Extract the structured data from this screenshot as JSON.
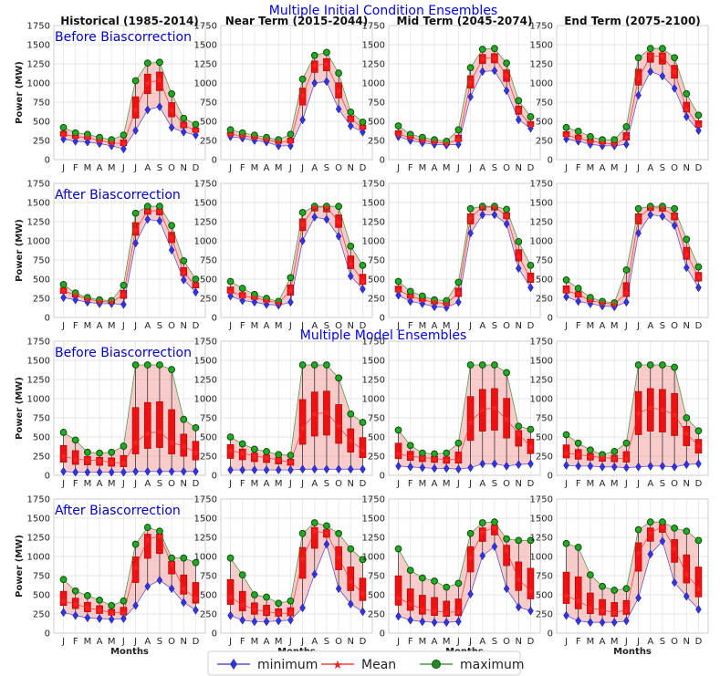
{
  "chart_data": {
    "type": "box-band",
    "suptitles": [
      "Multiple Initial Condition Ensembles",
      "Multiple Model Ensembles"
    ],
    "columns": [
      "Historical (1985-2014)",
      "Near Term (2015-2044)",
      "Mid Term (2045-2074)",
      "End Term (2075-2100)"
    ],
    "row_labels": [
      "Before Biascorrection",
      "After Biascorrection",
      "Before Biascorrection",
      "After Biascorrection"
    ],
    "categories": [
      "J",
      "F",
      "M",
      "A",
      "M",
      "J",
      "J",
      "A",
      "S",
      "O",
      "N",
      "D"
    ],
    "xlabel": "Months",
    "ylabel": "Power (MW)",
    "ylim": [
      0,
      1750
    ],
    "yticks": [
      0,
      250,
      500,
      750,
      1000,
      1250,
      1500,
      1750
    ],
    "legend": [
      {
        "name": "minimum",
        "color": "#3333cc",
        "marker": "diamond"
      },
      {
        "name": "Mean",
        "color": "#ee2222",
        "marker": "star"
      },
      {
        "name": "maximum",
        "color": "#228b22",
        "marker": "circle"
      }
    ],
    "panels": [
      [
        {
          "min": [
            270,
            240,
            230,
            210,
            180,
            140,
            380,
            650,
            690,
            420,
            360,
            320
          ],
          "mean": [
            330,
            300,
            290,
            250,
            220,
            210,
            650,
            1000,
            1040,
            650,
            450,
            380
          ],
          "max": [
            420,
            350,
            330,
            290,
            260,
            320,
            1030,
            1260,
            1270,
            860,
            540,
            460
          ]
        },
        {
          "min": [
            300,
            280,
            250,
            230,
            180,
            180,
            520,
            1000,
            1020,
            660,
            440,
            360
          ],
          "mean": [
            330,
            310,
            290,
            260,
            230,
            240,
            840,
            1230,
            1250,
            900,
            530,
            420
          ],
          "max": [
            390,
            350,
            320,
            290,
            260,
            330,
            1050,
            1360,
            1400,
            1130,
            620,
            490
          ]
        },
        {
          "min": [
            300,
            250,
            220,
            200,
            190,
            200,
            820,
            1150,
            1160,
            900,
            520,
            410
          ],
          "mean": [
            330,
            290,
            250,
            230,
            210,
            260,
            1010,
            1320,
            1330,
            1100,
            640,
            450
          ],
          "max": [
            440,
            330,
            290,
            260,
            240,
            390,
            1200,
            1440,
            1450,
            1260,
            770,
            560
          ]
        },
        {
          "min": [
            270,
            240,
            200,
            180,
            180,
            200,
            840,
            1150,
            1090,
            930,
            560,
            380
          ],
          "mean": [
            320,
            280,
            240,
            220,
            200,
            290,
            1060,
            1350,
            1350,
            1150,
            660,
            450
          ],
          "max": [
            420,
            370,
            300,
            260,
            260,
            430,
            1330,
            1450,
            1450,
            1330,
            860,
            580
          ]
        }
      ],
      [
        {
          "min": [
            260,
            230,
            200,
            180,
            180,
            170,
            970,
            1280,
            1260,
            880,
            490,
            330
          ],
          "mean": [
            350,
            290,
            240,
            210,
            200,
            300,
            1140,
            1390,
            1390,
            1040,
            580,
            420
          ],
          "max": [
            430,
            320,
            260,
            230,
            220,
            420,
            1360,
            1450,
            1450,
            1200,
            740,
            500
          ]
        },
        {
          "min": [
            280,
            220,
            200,
            170,
            160,
            200,
            1000,
            1310,
            1280,
            1060,
            540,
            370
          ],
          "mean": [
            340,
            280,
            260,
            220,
            190,
            350,
            1220,
            1440,
            1440,
            1250,
            700,
            470
          ],
          "max": [
            470,
            380,
            300,
            250,
            210,
            520,
            1370,
            1450,
            1450,
            1450,
            930,
            680
          ]
        },
        {
          "min": [
            290,
            210,
            180,
            140,
            130,
            200,
            1100,
            1340,
            1340,
            1220,
            640,
            390
          ],
          "mean": [
            360,
            280,
            230,
            200,
            180,
            320,
            1300,
            1440,
            1440,
            1330,
            800,
            500
          ],
          "max": [
            470,
            340,
            280,
            230,
            220,
            460,
            1420,
            1450,
            1450,
            1410,
            990,
            680
          ]
        },
        {
          "min": [
            270,
            210,
            180,
            150,
            140,
            200,
            1100,
            1340,
            1320,
            1200,
            650,
            390
          ],
          "mean": [
            350,
            300,
            220,
            190,
            170,
            320,
            1300,
            1430,
            1430,
            1320,
            830,
            530
          ],
          "max": [
            490,
            380,
            260,
            210,
            190,
            620,
            1420,
            1450,
            1450,
            1420,
            1020,
            660
          ]
        }
      ],
      [
        {
          "min": [
            50,
            40,
            40,
            40,
            40,
            40,
            50,
            50,
            50,
            50,
            50,
            50
          ],
          "mean": [
            250,
            210,
            200,
            190,
            170,
            160,
            430,
            550,
            570,
            430,
            380,
            300
          ],
          "max": [
            560,
            460,
            300,
            290,
            300,
            380,
            1440,
            1440,
            1440,
            1380,
            730,
            620
          ]
        },
        {
          "min": [
            70,
            70,
            70,
            70,
            70,
            70,
            80,
            80,
            80,
            80,
            80,
            80
          ],
          "mean": [
            320,
            290,
            250,
            230,
            200,
            170,
            620,
            800,
            820,
            640,
            450,
            330
          ],
          "max": [
            500,
            410,
            340,
            310,
            270,
            260,
            1440,
            1440,
            1440,
            1270,
            800,
            690
          ]
        },
        {
          "min": [
            120,
            110,
            100,
            90,
            90,
            80,
            100,
            150,
            150,
            120,
            140,
            150
          ],
          "mean": [
            280,
            250,
            230,
            220,
            200,
            210,
            690,
            860,
            880,
            730,
            540,
            370
          ],
          "max": [
            590,
            390,
            290,
            280,
            290,
            420,
            1440,
            1440,
            1440,
            1340,
            640,
            600
          ]
        },
        {
          "min": [
            130,
            120,
            120,
            110,
            110,
            100,
            110,
            120,
            120,
            110,
            140,
            150
          ],
          "mean": [
            290,
            270,
            250,
            230,
            220,
            220,
            810,
            880,
            860,
            790,
            550,
            380
          ],
          "max": [
            530,
            420,
            330,
            270,
            310,
            420,
            1440,
            1440,
            1440,
            1410,
            750,
            580
          ]
        }
      ],
      [
        {
          "min": [
            270,
            230,
            200,
            190,
            180,
            190,
            360,
            610,
            690,
            580,
            400,
            300
          ],
          "mean": [
            420,
            380,
            330,
            300,
            270,
            270,
            860,
            1220,
            1270,
            900,
            580,
            450
          ],
          "max": [
            700,
            550,
            490,
            430,
            360,
            420,
            1160,
            1380,
            1330,
            980,
            980,
            920
          ]
        },
        {
          "min": [
            230,
            170,
            150,
            150,
            160,
            170,
            330,
            770,
            1160,
            580,
            380,
            280
          ],
          "mean": [
            470,
            370,
            310,
            280,
            260,
            260,
            970,
            1330,
            1310,
            990,
            670,
            520
          ],
          "max": [
            980,
            760,
            500,
            470,
            390,
            420,
            1300,
            1440,
            1400,
            1300,
            1100,
            960
          ]
        },
        {
          "min": [
            220,
            170,
            150,
            140,
            140,
            150,
            510,
            1010,
            1130,
            580,
            340,
            290
          ],
          "mean": [
            460,
            380,
            310,
            290,
            270,
            280,
            990,
            1320,
            1380,
            1080,
            700,
            550
          ],
          "max": [
            1100,
            820,
            720,
            680,
            600,
            650,
            1300,
            1440,
            1450,
            1230,
            1210,
            1210
          ]
        },
        {
          "min": [
            230,
            160,
            140,
            140,
            140,
            160,
            460,
            1030,
            1200,
            660,
            480,
            310
          ],
          "mean": [
            490,
            420,
            330,
            300,
            270,
            300,
            1040,
            1310,
            1390,
            1100,
            770,
            580
          ],
          "max": [
            1170,
            1120,
            760,
            610,
            560,
            580,
            1350,
            1450,
            1450,
            1370,
            1330,
            1210
          ]
        }
      ]
    ]
  }
}
